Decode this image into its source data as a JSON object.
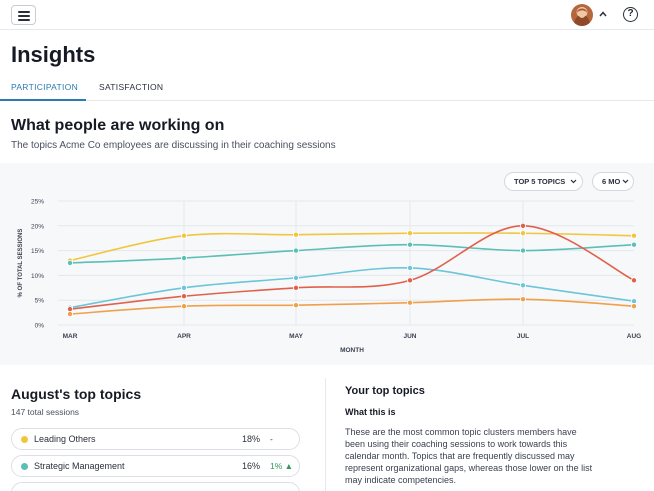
{
  "header": {
    "menu_icon": "hamburger-menu-icon",
    "avatar_icon": "user-avatar",
    "chevron_icon": "chevron-up-icon",
    "help_icon": "question-circle-icon",
    "help_glyph": "?"
  },
  "page": {
    "title": "Insights"
  },
  "tabs": [
    {
      "label": "PARTICIPATION",
      "active": true
    },
    {
      "label": "SATISFACTION",
      "active": false
    }
  ],
  "section": {
    "title": "What people are working on",
    "subtitle": "The topics Acme Co employees are discussing in their coaching sessions"
  },
  "filters": {
    "topics_label": "TOP 5 TOPICS",
    "range_label": "6 MO"
  },
  "chart_data": {
    "type": "line",
    "xlabel": "MONTH",
    "ylabel": "% OF TOTAL SESSIONS",
    "categories": [
      "MAR",
      "APR",
      "MAY",
      "JUN",
      "JUL",
      "AUG"
    ],
    "yticks": [
      "0%",
      "5%",
      "10%",
      "15%",
      "20%",
      "25%"
    ],
    "ylim": [
      0,
      25
    ],
    "grid": true,
    "series": [
      {
        "color": "#f2c53d",
        "values": [
          13,
          18,
          18.2,
          18.5,
          18.5,
          18
        ]
      },
      {
        "color": "#5bbfb5",
        "values": [
          12.5,
          13.5,
          15,
          16.2,
          15,
          16.2
        ]
      },
      {
        "color": "#6cc5d9",
        "values": [
          3.5,
          7.5,
          9.5,
          11.5,
          8,
          4.8
        ]
      },
      {
        "color": "#e0614a",
        "values": [
          3.2,
          5.8,
          7.5,
          9,
          20,
          9
        ]
      },
      {
        "color": "#f0a04b",
        "values": [
          2.2,
          3.8,
          4,
          4.5,
          5.2,
          3.8
        ]
      }
    ]
  },
  "august": {
    "title": "August's top topics",
    "subtitle": "147 total sessions",
    "topics": [
      {
        "name": "Leading Others",
        "pct": "18%",
        "change": "-",
        "color": "#f2c53d",
        "change_color": "#2b303b"
      },
      {
        "name": "Strategic Management",
        "pct": "16%",
        "change": "1% ▲",
        "color": "#5bbfb5",
        "change_color": "#2e9b5a"
      }
    ]
  },
  "your_topics": {
    "title": "Your top topics",
    "what_label": "What this is",
    "body": "These are the most common topic clusters members have been using their coaching sessions to work towards this calendar month.  Topics that are frequently discussed may represent organizational gaps, whereas those lower on the list may indicate competencies."
  }
}
